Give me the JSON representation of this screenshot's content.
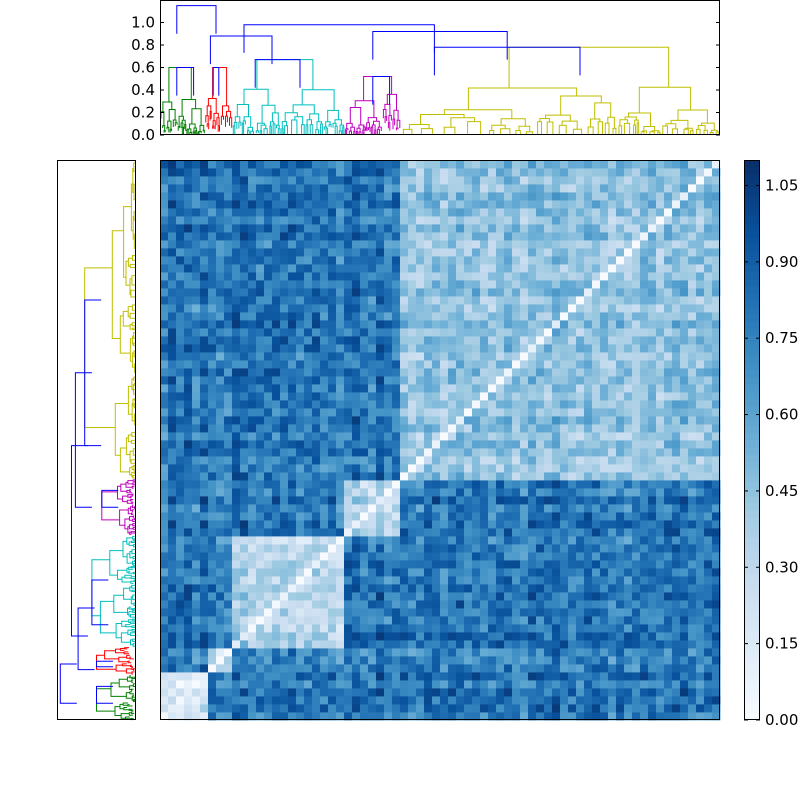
{
  "chart_data": [
    {
      "type": "heatmap",
      "title": "",
      "xlabel": "",
      "ylabel": "",
      "colormap": "Blues",
      "color_range": [
        0.0,
        1.1
      ],
      "colorbar_ticks": [
        "0.00",
        "0.15",
        "0.30",
        "0.45",
        "0.60",
        "0.75",
        "0.90",
        "1.05"
      ],
      "diagonal_value": 0.0,
      "cluster_order": [
        "green",
        "red",
        "cyan",
        "magenta",
        "yellow"
      ],
      "clusters": [
        {
          "name": "green",
          "start": 0,
          "end": 0.08,
          "within_value": 0.15
        },
        {
          "name": "red",
          "start": 0.08,
          "end": 0.13,
          "within_value": 0.35
        },
        {
          "name": "cyan",
          "start": 0.13,
          "end": 0.33,
          "within_value": 0.3
        },
        {
          "name": "magenta",
          "start": 0.33,
          "end": 0.43,
          "within_value": 0.3
        },
        {
          "name": "yellow",
          "start": 0.43,
          "end": 1.0,
          "within_value": 0.45
        }
      ],
      "between_cluster_value": 0.8
    },
    {
      "type": "dendrogram",
      "orientation": "top",
      "ylim": [
        0,
        1.2
      ],
      "yticks": [
        "0.0",
        "0.2",
        "0.4",
        "0.6",
        "0.8",
        "1.0"
      ],
      "link_color_above_threshold": "#0000ff",
      "links": [
        {
          "x": [
            0.03,
            0.1
          ],
          "y": 1.15
        },
        {
          "x": [
            0.15,
            0.49
          ],
          "y": 0.98
        },
        {
          "x": [
            0.09,
            0.2
          ],
          "y": 0.88
        },
        {
          "x": [
            0.38,
            0.62
          ],
          "y": 0.92
        },
        {
          "x": [
            0.03,
            0.06
          ],
          "y": 0.6
        },
        {
          "x": [
            0.095,
            0.105
          ],
          "y": 0.6
        },
        {
          "x": [
            0.17,
            0.25
          ],
          "y": 0.67
        },
        {
          "x": [
            0.38,
            0.41
          ],
          "y": 0.52
        },
        {
          "x": [
            0.49,
            0.75
          ],
          "y": 0.78
        }
      ],
      "clusters": [
        {
          "name": "green",
          "color": "#008000",
          "range": [
            0.0,
            0.08
          ],
          "height": 0.6
        },
        {
          "name": "red",
          "color": "#ff0000",
          "range": [
            0.08,
            0.13
          ],
          "height": 0.6
        },
        {
          "name": "cyan",
          "color": "#00bfbf",
          "range": [
            0.13,
            0.33
          ],
          "height": 0.67
        },
        {
          "name": "magenta",
          "color": "#bf00bf",
          "range": [
            0.33,
            0.43
          ],
          "height": 0.52
        },
        {
          "name": "yellow",
          "color": "#bfbf00",
          "range": [
            0.43,
            1.0
          ],
          "height": 0.78
        }
      ]
    },
    {
      "type": "dendrogram",
      "orientation": "left",
      "link_color_above_threshold": "#0000ff",
      "clusters": [
        {
          "name": "green",
          "color": "#008000",
          "range": [
            0.0,
            0.08
          ]
        },
        {
          "name": "red",
          "color": "#ff0000",
          "range": [
            0.08,
            0.13
          ]
        },
        {
          "name": "cyan",
          "color": "#00bfbf",
          "range": [
            0.13,
            0.33
          ]
        },
        {
          "name": "magenta",
          "color": "#bf00bf",
          "range": [
            0.33,
            0.43
          ]
        },
        {
          "name": "yellow",
          "color": "#bfbf00",
          "range": [
            0.43,
            1.0
          ]
        }
      ]
    }
  ]
}
